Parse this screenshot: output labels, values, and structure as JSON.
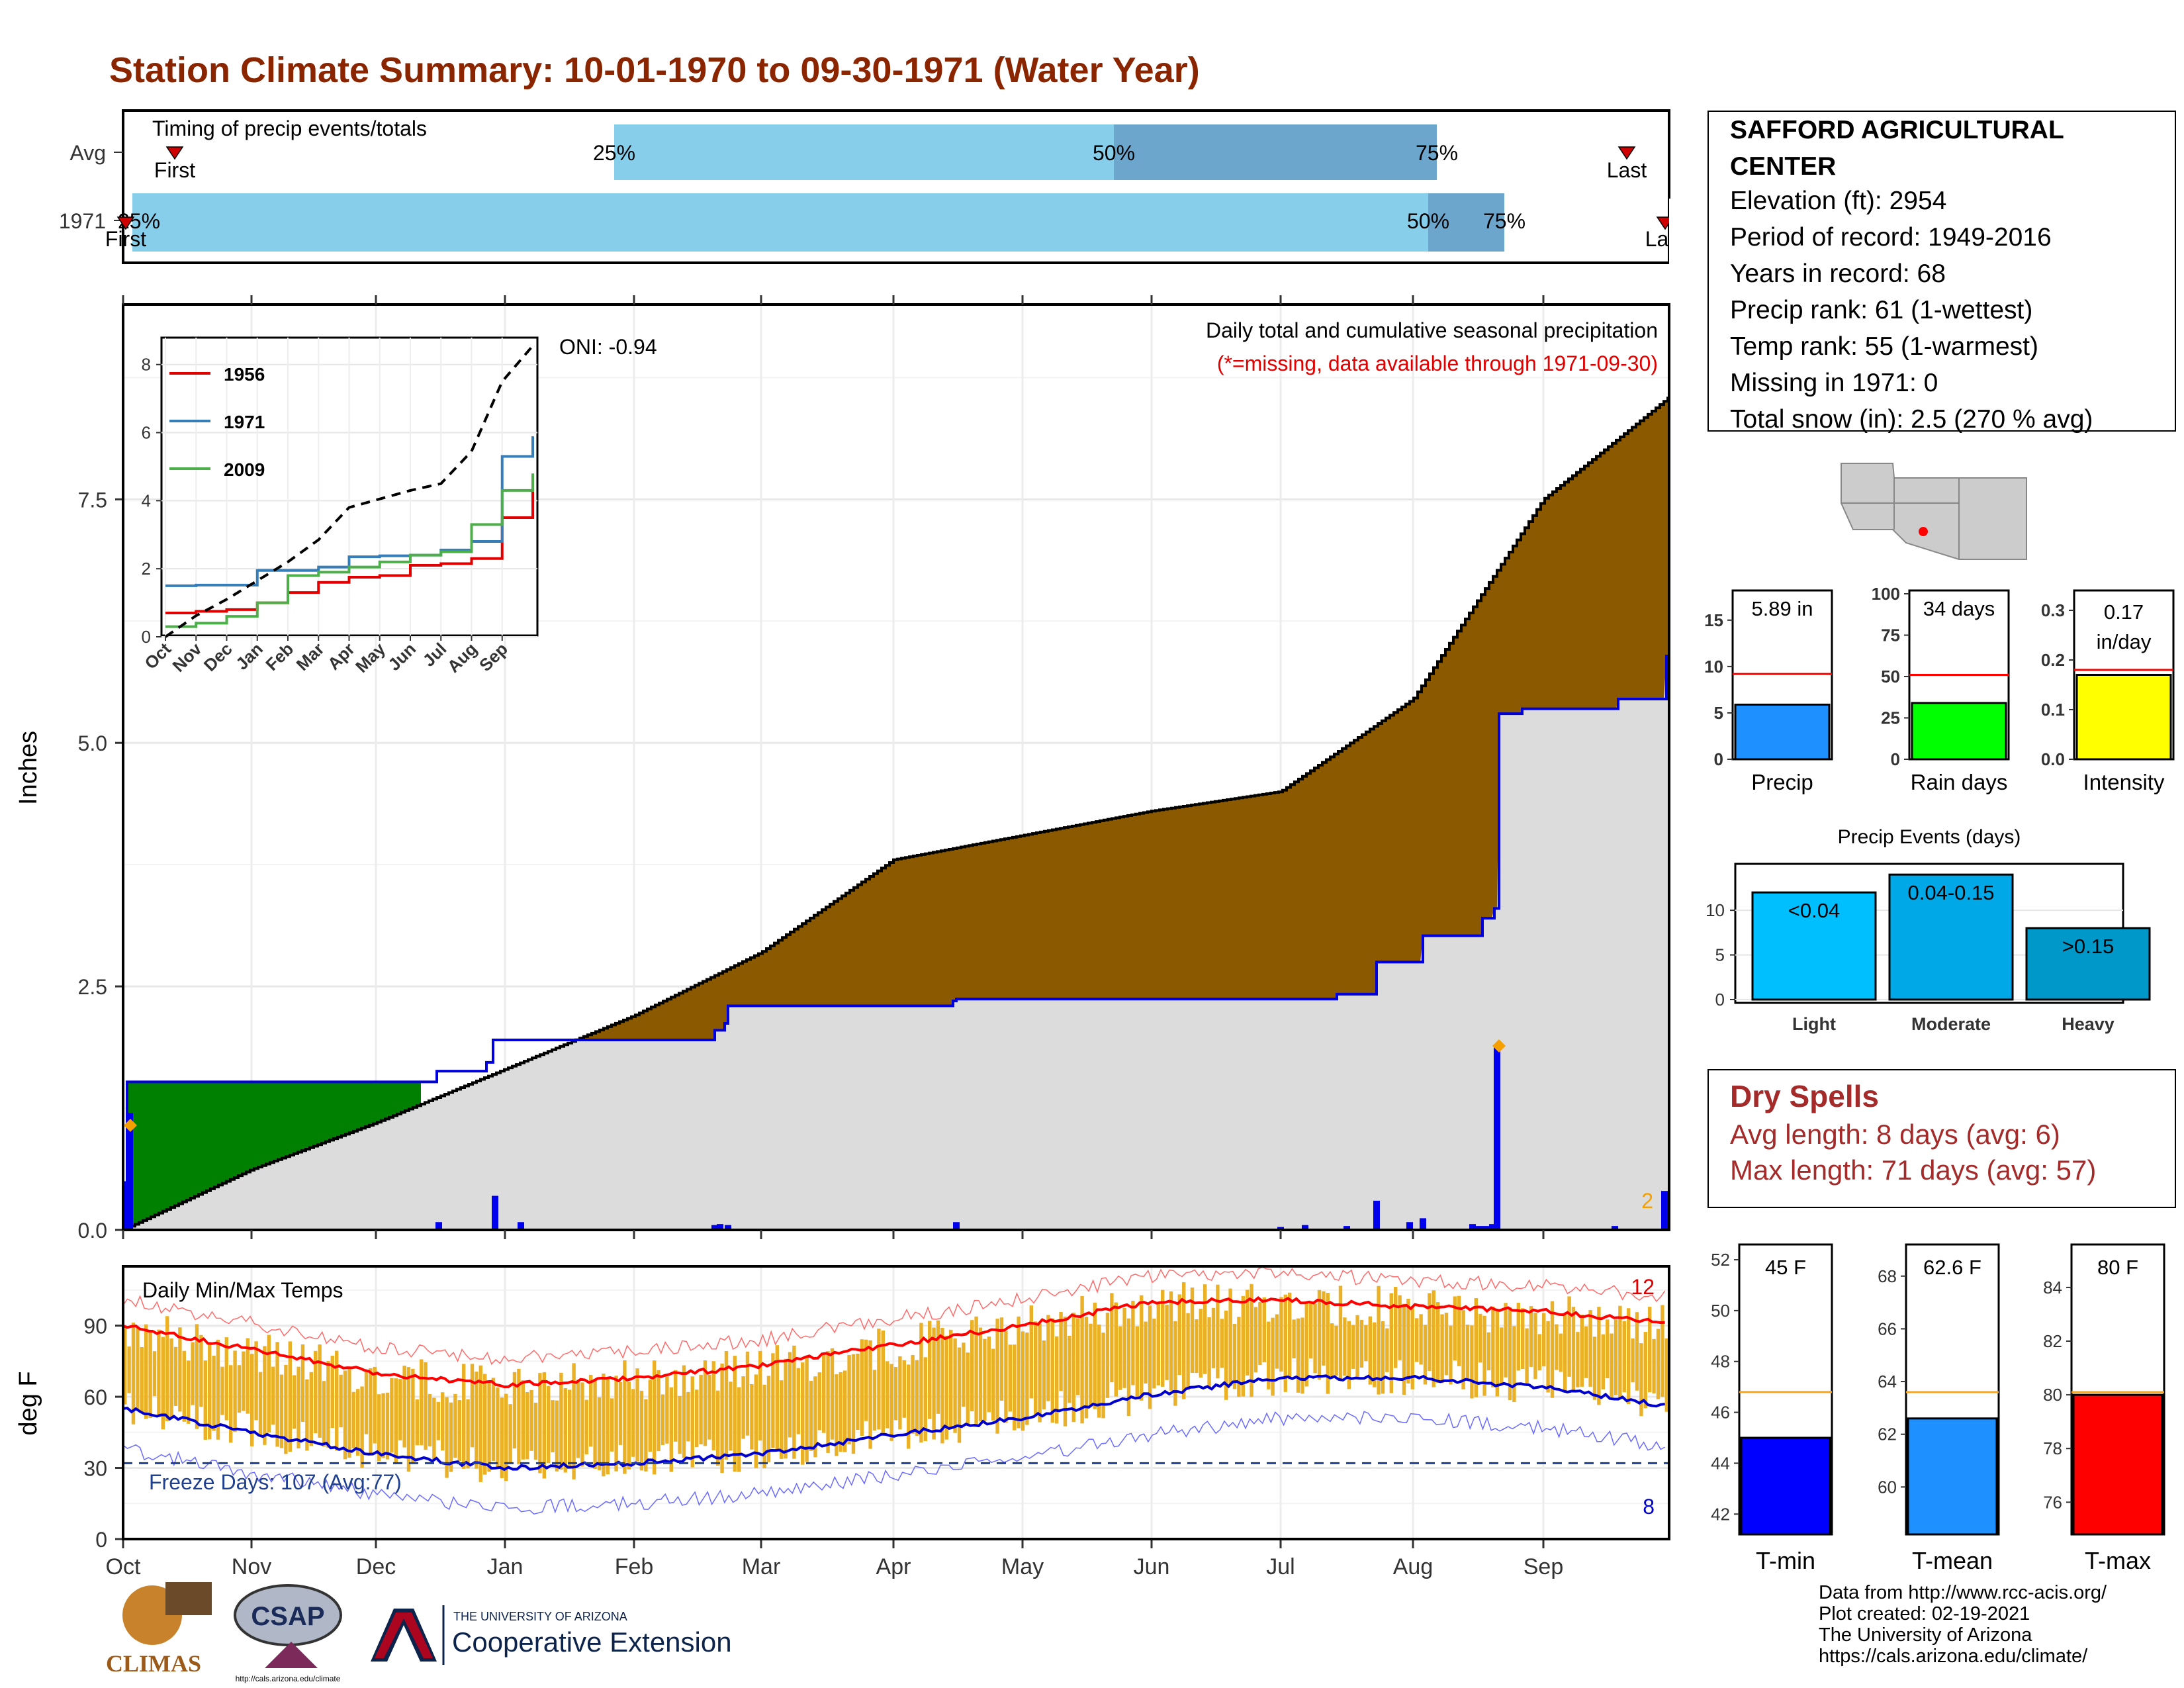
{
  "title": "Station Climate Summary: 10-01-1970 to 09-30-1971 (Water Year)",
  "colors": {
    "title": "#8B2500",
    "cum_fill": "#8B5A00",
    "deficit": "#008000",
    "obs_line": "#0000DD",
    "ci_light": "#87CEEB",
    "ci_dark": "#6CA6CD",
    "temp_bar": "#EAB127"
  },
  "timing": {
    "label": "Timing of precip events/totals",
    "rows": [
      "Avg",
      "1971"
    ],
    "avg": {
      "p25": "25%",
      "p50": "50%",
      "p75": "75%",
      "first": "First",
      "last": "Last"
    },
    "y1971": {
      "p25": "25%",
      "p50": "50%",
      "p75": "75%",
      "first": "First",
      "last": "Last"
    }
  },
  "main": {
    "ylabel": "Inches",
    "yticks": [
      "0.0",
      "2.5",
      "5.0",
      "7.5"
    ],
    "oni": "ONI: -0.94",
    "subtitle": "Daily total and cumulative seasonal precipitation",
    "missing_note": "(*=missing, data available through 1971-09-30)",
    "peak_count": "2"
  },
  "inset": {
    "yticks": [
      "0",
      "2",
      "4",
      "6",
      "8"
    ],
    "xticks": [
      "Oct",
      "Nov",
      "Dec",
      "Jan",
      "Feb",
      "Mar",
      "Apr",
      "May",
      "Jun",
      "Jul",
      "Aug",
      "Sep"
    ],
    "legend": [
      "1956",
      "1971",
      "2009"
    ]
  },
  "temps": {
    "label": "Daily Min/Max Temps",
    "ylabel": "deg F",
    "yticks": [
      "0",
      "30",
      "60",
      "90"
    ],
    "freeze": "Freeze Days: 107 (Avg:77)",
    "max_count": "12",
    "min_count": "8"
  },
  "months": [
    "Oct",
    "Nov",
    "Dec",
    "Jan",
    "Feb",
    "Mar",
    "Apr",
    "May",
    "Jun",
    "Jul",
    "Aug",
    "Sep"
  ],
  "info": {
    "station": "SAFFORD AGRICULTURAL CENTER",
    "station_l1": "SAFFORD AGRICULTURAL",
    "station_l2": "CENTER",
    "elevation": "Elevation (ft): 2954",
    "period": "Period of record: 1949-2016",
    "years": "Years in record: 68",
    "precip_rank": "Precip rank: 61 (1-wettest)",
    "temp_rank": "Temp rank: 55 (1-warmest)",
    "missing": "Missing in 1971: 0",
    "snow": "Total snow (in): 2.5 (270 % avg)"
  },
  "minis": {
    "precip": {
      "label": "Precip",
      "value": "5.89 in",
      "yticks": [
        "0",
        "5",
        "10",
        "15"
      ]
    },
    "raindays": {
      "label": "Rain days",
      "value": "34 days",
      "yticks": [
        "0",
        "25",
        "50",
        "75",
        "100"
      ]
    },
    "intensity": {
      "label": "Intensity",
      "value_l1": "0.17",
      "value_l2": "in/day",
      "yticks": [
        "0.0",
        "0.1",
        "0.2",
        "0.3"
      ]
    }
  },
  "events": {
    "title": "Precip Events (days)",
    "yticks": [
      "0",
      "5",
      "10"
    ],
    "bars": [
      "<0.04",
      "0.04-0.15",
      ">0.15"
    ],
    "cats": [
      "Light",
      "Moderate",
      "Heavy"
    ]
  },
  "dry": {
    "title": "Dry Spells",
    "avg": "Avg length: 8 days (avg: 6)",
    "max": "Max length: 71 days (avg: 57)"
  },
  "tbars": {
    "tmin": {
      "label": "T-min",
      "value": "45 F",
      "yticks": [
        "42",
        "44",
        "46",
        "48",
        "50",
        "52"
      ]
    },
    "tmean": {
      "label": "T-mean",
      "value": "62.6 F",
      "yticks": [
        "60",
        "62",
        "64",
        "66",
        "68"
      ]
    },
    "tmax": {
      "label": "T-max",
      "value": "80 F",
      "yticks": [
        "76",
        "78",
        "80",
        "82",
        "84"
      ]
    }
  },
  "footer": {
    "l1": "Data from http://www.rcc-acis.org/",
    "l2": "Plot created: 02-19-2021",
    "l3": "The University of Arizona",
    "l4": "https://cals.arizona.edu/climate/"
  },
  "logos": {
    "climas": "CLIMAS",
    "csap": "CSAP",
    "ua_small": "THE UNIVERSITY OF ARIZONA",
    "ua_big": "Cooperative Extension",
    "csap_url": "http://cals.arizona.edu/climate"
  },
  "chart_data": [
    {
      "type": "area",
      "title": "Daily total and cumulative seasonal precipitation",
      "ylabel": "Inches",
      "ylim": [
        0,
        9.5
      ],
      "x": [
        "Oct",
        "Nov",
        "Dec",
        "Jan",
        "Feb",
        "Mar",
        "Apr",
        "May",
        "Jun",
        "Jul",
        "Aug",
        "Sep",
        "Sep30"
      ],
      "series": [
        {
          "name": "avg_cumulative",
          "values": [
            0.0,
            0.62,
            1.1,
            1.65,
            2.2,
            2.85,
            3.8,
            4.05,
            4.3,
            4.5,
            5.45,
            7.5,
            8.55
          ]
        },
        {
          "name": "obs_cumulative",
          "values": [
            1.52,
            1.52,
            1.52,
            1.95,
            1.95,
            2.05,
            2.35,
            2.38,
            2.38,
            2.4,
            2.8,
            5.3,
            5.89
          ]
        }
      ]
    },
    {
      "type": "line",
      "title": "",
      "ylim": [
        0,
        8.5
      ],
      "x": [
        "Oct",
        "Nov",
        "Dec",
        "Jan",
        "Feb",
        "Mar",
        "Apr",
        "May",
        "Jun",
        "Jul",
        "Aug",
        "Sep",
        "Sep30"
      ],
      "series": [
        {
          "name": "1956",
          "values": [
            0.7,
            0.75,
            0.8,
            1.0,
            1.3,
            1.6,
            1.75,
            1.8,
            2.1,
            2.15,
            2.3,
            3.5,
            4.3
          ]
        },
        {
          "name": "1971",
          "values": [
            1.5,
            1.52,
            1.52,
            1.95,
            1.95,
            2.05,
            2.35,
            2.38,
            2.4,
            2.55,
            2.8,
            5.3,
            5.89
          ]
        },
        {
          "name": "2009",
          "values": [
            0.3,
            0.4,
            0.6,
            1.0,
            1.8,
            1.9,
            2.05,
            2.2,
            2.4,
            2.5,
            3.3,
            4.3,
            4.8
          ]
        },
        {
          "name": "avg",
          "values": [
            0.0,
            0.62,
            1.1,
            1.65,
            2.2,
            2.85,
            3.8,
            4.05,
            4.3,
            4.5,
            5.45,
            7.5,
            8.55
          ]
        }
      ]
    },
    {
      "type": "bar",
      "title": "Daily Min/Max Temps",
      "ylabel": "deg F",
      "ylim": [
        0,
        115
      ],
      "x": [
        "Oct",
        "Nov",
        "Dec",
        "Jan",
        "Feb",
        "Mar",
        "Apr",
        "May",
        "Jun",
        "Jul",
        "Aug",
        "Sep",
        "Sep30"
      ],
      "series": [
        {
          "name": "avg_max",
          "values": [
            90,
            80,
            70,
            65,
            68,
            73,
            82,
            90,
            100,
            101,
            98,
            96,
            91
          ]
        },
        {
          "name": "avg_min",
          "values": [
            55,
            45,
            36,
            30,
            32,
            36,
            44,
            51,
            61,
            68,
            68,
            64,
            56
          ]
        },
        {
          "name": "freeze_line",
          "values": [
            32,
            32,
            32,
            32,
            32,
            32,
            32,
            32,
            32,
            32,
            32,
            32,
            32
          ]
        }
      ]
    },
    {
      "type": "bar",
      "categories": [
        "Light",
        "Moderate",
        "Heavy"
      ],
      "values": [
        12,
        14,
        8
      ],
      "title": "Precip Events (days)",
      "ylim": [
        0,
        15
      ]
    },
    {
      "type": "bar",
      "categories": [
        "Precip",
        "Rain days",
        "Intensity"
      ],
      "values": [
        5.89,
        34,
        0.17
      ],
      "averages": [
        9.2,
        51,
        0.18
      ]
    },
    {
      "type": "bar",
      "categories": [
        "T-min",
        "T-mean",
        "T-max"
      ],
      "values": [
        45,
        62.6,
        80
      ],
      "averages": [
        46.8,
        63.6,
        80.1
      ]
    }
  ]
}
